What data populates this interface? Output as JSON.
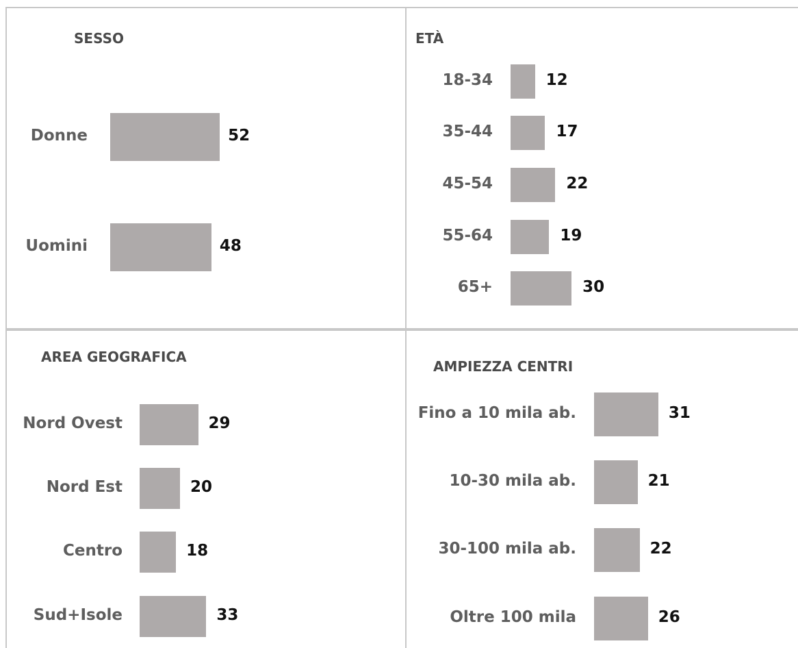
{
  "chart_data": [
    {
      "type": "bar",
      "title": "SESSO",
      "categories": [
        "Donne",
        "Uomini"
      ],
      "values": [
        52,
        48
      ]
    },
    {
      "type": "bar",
      "title": "ETÀ",
      "categories": [
        "18-34",
        "35-44",
        "45-54",
        "55-64",
        "65+"
      ],
      "values": [
        12,
        17,
        22,
        19,
        30
      ]
    },
    {
      "type": "bar",
      "title": "AREA GEOGRAFICA",
      "categories": [
        "Nord Ovest",
        "Nord Est",
        "Centro",
        "Sud+Isole"
      ],
      "values": [
        29,
        20,
        18,
        33
      ]
    },
    {
      "type": "bar",
      "title": "AMPIEZZA CENTRI",
      "categories": [
        "Fino a 10 mila ab.",
        "10-30 mila ab.",
        "30-100 mila ab.",
        "Oltre 100 mila"
      ],
      "values": [
        31,
        21,
        22,
        26
      ]
    }
  ],
  "colors": {
    "bar": "#aeaaaa",
    "border": "#c8c8c8",
    "label": "#5e5e5e",
    "value": "#111111"
  }
}
